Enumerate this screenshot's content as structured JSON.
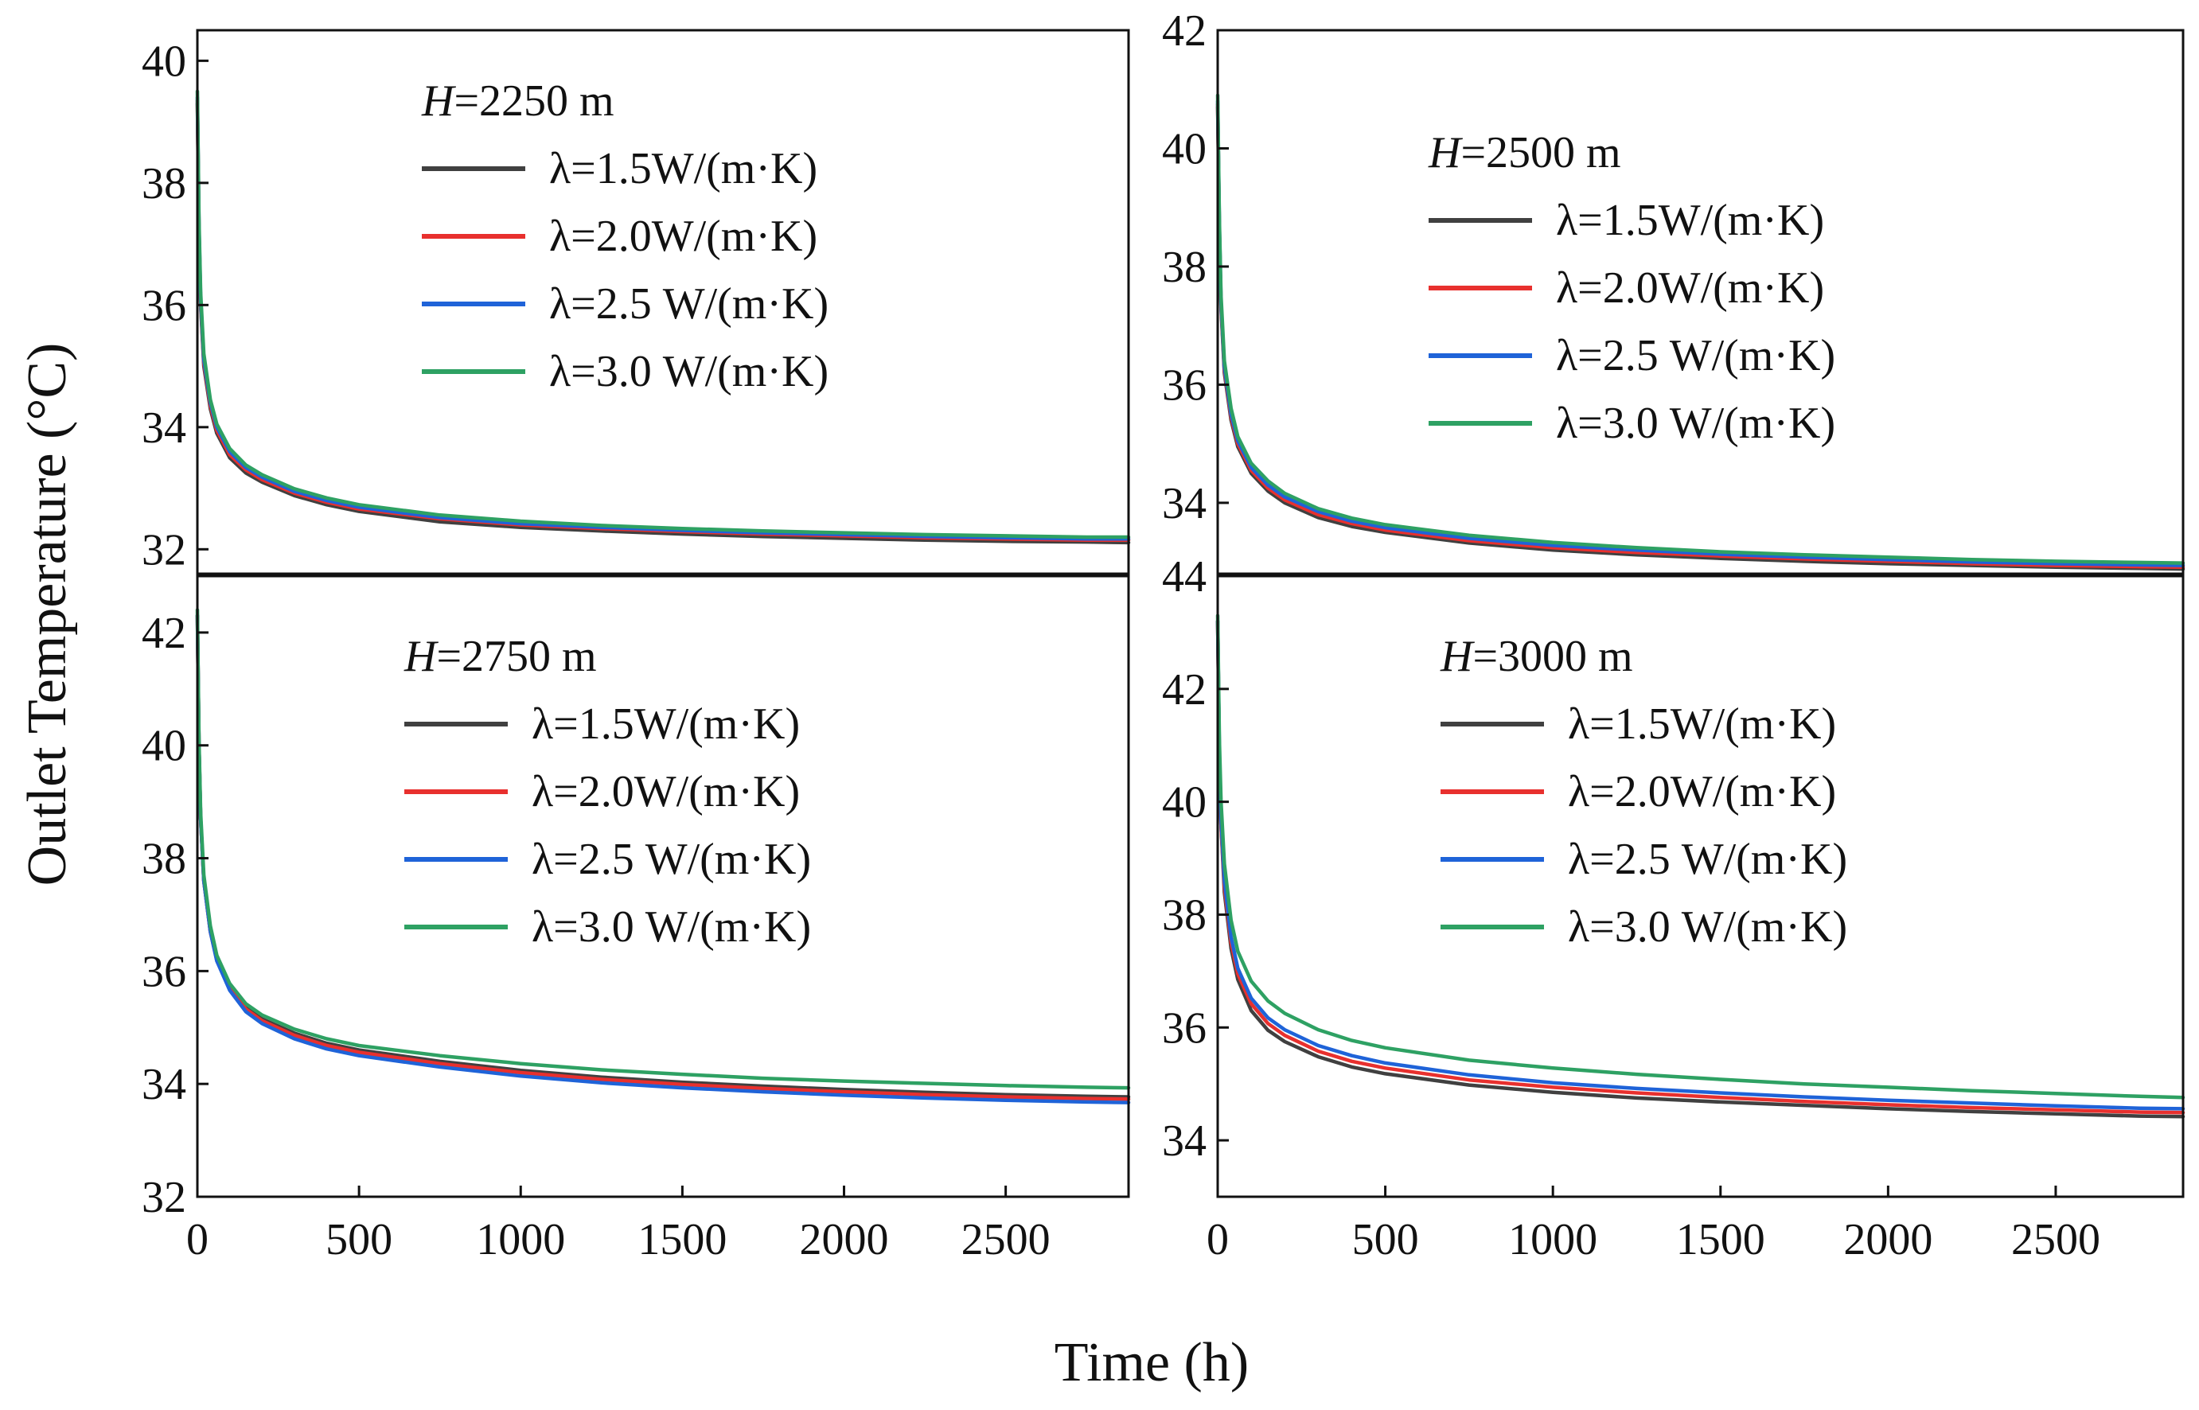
{
  "figure": {
    "ylabel": "Outlet Temperature (°C)",
    "xlabel": "Time (h)"
  },
  "chart_data": [
    {
      "type": "line",
      "title": "H=2250 m",
      "title_var": "H",
      "title_rest": "=2250 m",
      "xlim": [
        0,
        2880
      ],
      "ylim": [
        31.6,
        40.5
      ],
      "xticks": [],
      "xtick_labels": [],
      "yticks": [
        32,
        34,
        36,
        38,
        40
      ],
      "ytick_labels": [
        "32",
        "34",
        "36",
        "38",
        "40"
      ],
      "x": [
        0,
        5,
        10,
        20,
        40,
        60,
        100,
        150,
        200,
        300,
        400,
        500,
        750,
        1000,
        1250,
        1500,
        1750,
        2000,
        2250,
        2500,
        2750,
        2880
      ],
      "series": [
        {
          "name": "λ=1.5W/(m·K)",
          "color": "#404040",
          "values": [
            39.3,
            37.2,
            36.0,
            35.0,
            34.3,
            33.9,
            33.5,
            33.25,
            33.1,
            32.88,
            32.73,
            32.62,
            32.45,
            32.36,
            32.3,
            32.25,
            32.21,
            32.18,
            32.15,
            32.13,
            32.12,
            32.11
          ]
        },
        {
          "name": "λ=2.0W/(m·K)",
          "color": "#e8302e",
          "values": [
            39.35,
            37.25,
            36.05,
            35.05,
            34.35,
            33.95,
            33.55,
            33.3,
            33.14,
            32.92,
            32.77,
            32.66,
            32.5,
            32.4,
            32.34,
            32.29,
            32.25,
            32.22,
            32.19,
            32.17,
            32.15,
            32.15
          ]
        },
        {
          "name": "λ=2.5 W/(m·K)",
          "color": "#1f63d8",
          "values": [
            39.4,
            37.3,
            36.1,
            35.1,
            34.4,
            34.0,
            33.6,
            33.34,
            33.18,
            32.95,
            32.8,
            32.69,
            32.52,
            32.42,
            32.36,
            32.31,
            32.27,
            32.24,
            32.21,
            32.19,
            32.17,
            32.17
          ]
        },
        {
          "name": "λ=3.0 W/(m·K)",
          "color": "#2ea163",
          "values": [
            39.5,
            37.4,
            36.2,
            35.2,
            34.45,
            34.05,
            33.65,
            33.38,
            33.22,
            32.99,
            32.84,
            32.73,
            32.56,
            32.46,
            32.39,
            32.34,
            32.3,
            32.27,
            32.24,
            32.22,
            32.2,
            32.2
          ]
        }
      ]
    },
    {
      "type": "line",
      "title": "H=2500 m",
      "title_var": "H",
      "title_rest": "=2500 m",
      "xlim": [
        0,
        2880
      ],
      "ylim": [
        32.8,
        42
      ],
      "xticks": [],
      "xtick_labels": [],
      "yticks": [
        34,
        36,
        38,
        40,
        42
      ],
      "ytick_labels": [
        "34",
        "36",
        "38",
        "40",
        "42"
      ],
      "x": [
        0,
        5,
        10,
        20,
        40,
        60,
        100,
        150,
        200,
        300,
        400,
        500,
        750,
        1000,
        1250,
        1500,
        1750,
        2000,
        2250,
        2500,
        2750,
        2880
      ],
      "series": [
        {
          "name": "λ=1.5W/(m·K)",
          "color": "#404040",
          "values": [
            40.7,
            38.6,
            37.3,
            36.2,
            35.4,
            34.95,
            34.5,
            34.2,
            34.0,
            33.75,
            33.6,
            33.5,
            33.32,
            33.2,
            33.12,
            33.06,
            33.01,
            32.97,
            32.94,
            32.91,
            32.89,
            32.88
          ]
        },
        {
          "name": "λ=2.0W/(m·K)",
          "color": "#e8302e",
          "values": [
            40.75,
            38.65,
            37.35,
            36.25,
            35.45,
            35.0,
            34.55,
            34.25,
            34.05,
            33.8,
            33.65,
            33.54,
            33.36,
            33.24,
            33.16,
            33.1,
            33.05,
            33.01,
            32.97,
            32.94,
            32.92,
            32.91
          ]
        },
        {
          "name": "λ=2.5 W/(m·K)",
          "color": "#1f63d8",
          "values": [
            40.8,
            38.7,
            37.4,
            36.3,
            35.5,
            35.05,
            34.6,
            34.3,
            34.1,
            33.85,
            33.69,
            33.58,
            33.4,
            33.28,
            33.2,
            33.13,
            33.08,
            33.04,
            33.0,
            32.97,
            32.95,
            32.94
          ]
        },
        {
          "name": "λ=3.0 W/(m·K)",
          "color": "#2ea163",
          "values": [
            40.9,
            38.8,
            37.5,
            36.4,
            35.6,
            35.12,
            34.67,
            34.37,
            34.16,
            33.9,
            33.74,
            33.63,
            33.45,
            33.33,
            33.24,
            33.17,
            33.12,
            33.08,
            33.04,
            33.01,
            32.99,
            32.98
          ]
        }
      ]
    },
    {
      "type": "line",
      "title": "H=2750 m",
      "title_var": "H",
      "title_rest": "=2750 m",
      "xlim": [
        0,
        2880
      ],
      "ylim": [
        32,
        43
      ],
      "xticks": [
        0,
        500,
        1000,
        1500,
        2000,
        2500
      ],
      "xtick_labels": [
        "0",
        "500",
        "1000",
        "1500",
        "2000",
        "2500"
      ],
      "yticks": [
        32,
        34,
        36,
        38,
        40,
        42
      ],
      "ytick_labels": [
        "32",
        "34",
        "36",
        "38",
        "40",
        "42"
      ],
      "x": [
        0,
        5,
        10,
        20,
        40,
        60,
        100,
        150,
        200,
        300,
        400,
        500,
        750,
        1000,
        1250,
        1500,
        1750,
        2000,
        2250,
        2500,
        2750,
        2880
      ],
      "series": [
        {
          "name": "λ=1.5W/(m·K)",
          "color": "#404040",
          "values": [
            42.3,
            40.0,
            38.7,
            37.6,
            36.7,
            36.2,
            35.7,
            35.35,
            35.15,
            34.9,
            34.72,
            34.6,
            34.4,
            34.24,
            34.12,
            34.03,
            33.96,
            33.9,
            33.85,
            33.81,
            33.78,
            33.77
          ]
        },
        {
          "name": "λ=2.0W/(m·K)",
          "color": "#e8302e",
          "values": [
            42.3,
            40.0,
            38.7,
            37.6,
            36.7,
            36.2,
            35.7,
            35.33,
            35.12,
            34.86,
            34.68,
            34.56,
            34.36,
            34.2,
            34.08,
            33.99,
            33.92,
            33.86,
            33.81,
            33.77,
            33.74,
            33.73
          ]
        },
        {
          "name": "λ=2.5 W/(m·K)",
          "color": "#1f63d8",
          "values": [
            42.3,
            40.0,
            38.7,
            37.6,
            36.7,
            36.18,
            35.66,
            35.28,
            35.07,
            34.8,
            34.62,
            34.5,
            34.3,
            34.14,
            34.02,
            33.93,
            33.86,
            33.8,
            33.75,
            33.71,
            33.68,
            33.67
          ]
        },
        {
          "name": "λ=3.0 W/(m·K)",
          "color": "#2ea163",
          "values": [
            42.4,
            40.1,
            38.8,
            37.7,
            36.8,
            36.28,
            35.78,
            35.42,
            35.22,
            34.97,
            34.8,
            34.68,
            34.5,
            34.36,
            34.25,
            34.17,
            34.1,
            34.05,
            34.01,
            33.97,
            33.94,
            33.93
          ]
        }
      ]
    },
    {
      "type": "line",
      "title": "H=3000 m",
      "title_var": "H",
      "title_rest": "=3000 m",
      "xlim": [
        0,
        2880
      ],
      "ylim": [
        33,
        44
      ],
      "xticks": [
        0,
        500,
        1000,
        1500,
        2000,
        2500
      ],
      "xtick_labels": [
        "0",
        "500",
        "1000",
        "1500",
        "2000",
        "2500"
      ],
      "yticks": [
        34,
        36,
        38,
        40,
        42,
        44
      ],
      "ytick_labels": [
        "34",
        "36",
        "38",
        "40",
        "42",
        "44"
      ],
      "x": [
        0,
        5,
        10,
        20,
        40,
        60,
        100,
        150,
        200,
        300,
        400,
        500,
        750,
        1000,
        1250,
        1500,
        1750,
        2000,
        2250,
        2500,
        2750,
        2880
      ],
      "series": [
        {
          "name": "λ=1.5W/(m·K)",
          "color": "#404040",
          "values": [
            43.2,
            40.8,
            39.6,
            38.4,
            37.4,
            36.85,
            36.3,
            35.95,
            35.75,
            35.48,
            35.3,
            35.18,
            34.98,
            34.85,
            34.75,
            34.68,
            34.62,
            34.56,
            34.51,
            34.47,
            34.43,
            34.42
          ]
        },
        {
          "name": "λ=2.0W/(m·K)",
          "color": "#e8302e",
          "values": [
            43.2,
            40.8,
            39.6,
            38.5,
            37.5,
            36.95,
            36.42,
            36.07,
            35.86,
            35.58,
            35.4,
            35.28,
            35.07,
            34.94,
            34.84,
            34.76,
            34.69,
            34.63,
            34.58,
            34.54,
            34.5,
            34.49
          ]
        },
        {
          "name": "λ=2.5 W/(m·K)",
          "color": "#1f63d8",
          "values": [
            43.2,
            40.9,
            39.7,
            38.6,
            37.6,
            37.05,
            36.52,
            36.17,
            35.96,
            35.68,
            35.5,
            35.37,
            35.16,
            35.02,
            34.92,
            34.84,
            34.77,
            34.71,
            34.66,
            34.61,
            34.57,
            34.56
          ]
        },
        {
          "name": "λ=3.0 W/(m·K)",
          "color": "#2ea163",
          "values": [
            43.3,
            41.1,
            40.0,
            38.9,
            37.9,
            37.35,
            36.82,
            36.47,
            36.25,
            35.96,
            35.77,
            35.64,
            35.42,
            35.28,
            35.17,
            35.08,
            35.0,
            34.94,
            34.88,
            34.83,
            34.78,
            34.76
          ]
        }
      ]
    }
  ]
}
